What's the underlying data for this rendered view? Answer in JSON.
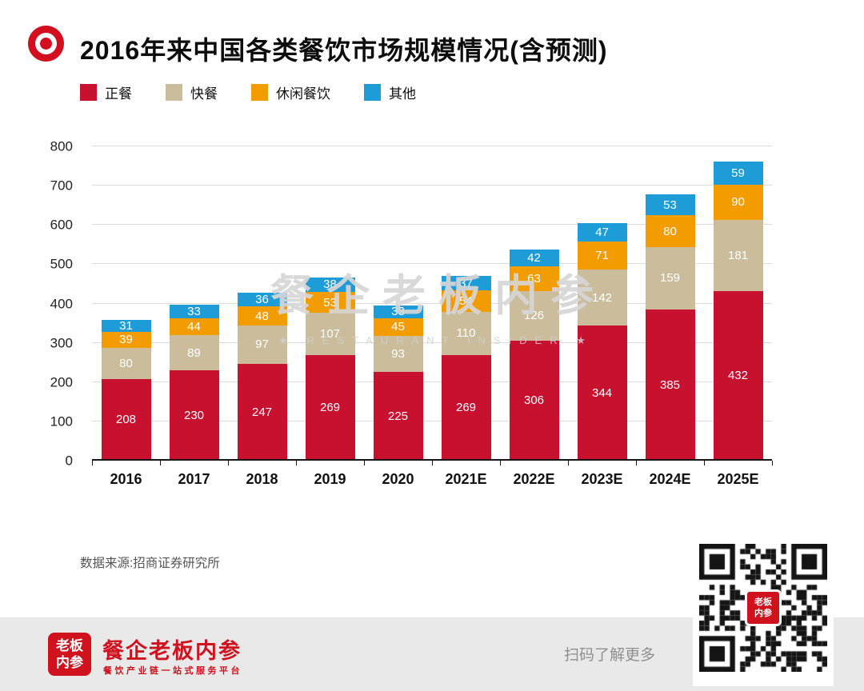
{
  "header": {
    "title": "2016年来中国各类餐饮市场规模情况(含预测)"
  },
  "legend": [
    {
      "label": "正餐",
      "color": "#c8102f"
    },
    {
      "label": "快餐",
      "color": "#cbbc9c"
    },
    {
      "label": "休闲餐饮",
      "color": "#f39c00"
    },
    {
      "label": "其他",
      "color": "#1e9cd8"
    }
  ],
  "chart_data": {
    "type": "bar",
    "stacked": true,
    "title": "2016年来中国各类餐饮市场规模情况(含预测)",
    "categories": [
      "2016",
      "2017",
      "2018",
      "2019",
      "2020",
      "2021E",
      "2022E",
      "2023E",
      "2024E",
      "2025E"
    ],
    "series": [
      {
        "name": "正餐",
        "color": "#c8102f",
        "values": [
          208,
          230,
          247,
          269,
          225,
          269,
          306,
          344,
          385,
          432
        ]
      },
      {
        "name": "快餐",
        "color": "#cbbc9c",
        "values": [
          80,
          89,
          97,
          107,
          93,
          110,
          126,
          142,
          159,
          181
        ]
      },
      {
        "name": "休闲餐饮",
        "color": "#f39c00",
        "values": [
          39,
          44,
          48,
          53,
          45,
          54,
          63,
          71,
          80,
          90
        ]
      },
      {
        "name": "其他",
        "color": "#1e9cd8",
        "values": [
          31,
          33,
          36,
          38,
          33,
          37,
          42,
          47,
          53,
          59
        ]
      }
    ],
    "xlabel": "",
    "ylabel": "",
    "ylim": [
      0,
      800
    ],
    "yticks": [
      0,
      100,
      200,
      300,
      400,
      500,
      600,
      700,
      800
    ],
    "grid": true,
    "legend_position": "top"
  },
  "watermark": {
    "text": "餐企老板内参",
    "subtext": "★ RESTAURANT INSIDER ★"
  },
  "source": {
    "text": "数据来源:招商证券研究所"
  },
  "footer": {
    "logo_lines": [
      "老板",
      "内参"
    ],
    "brand": "餐企老板内参",
    "tagline": "餐饮产业链一站式服务平台",
    "scan_text": "扫码了解更多"
  },
  "qr": {
    "logo_lines": [
      "老板",
      "内参"
    ]
  }
}
